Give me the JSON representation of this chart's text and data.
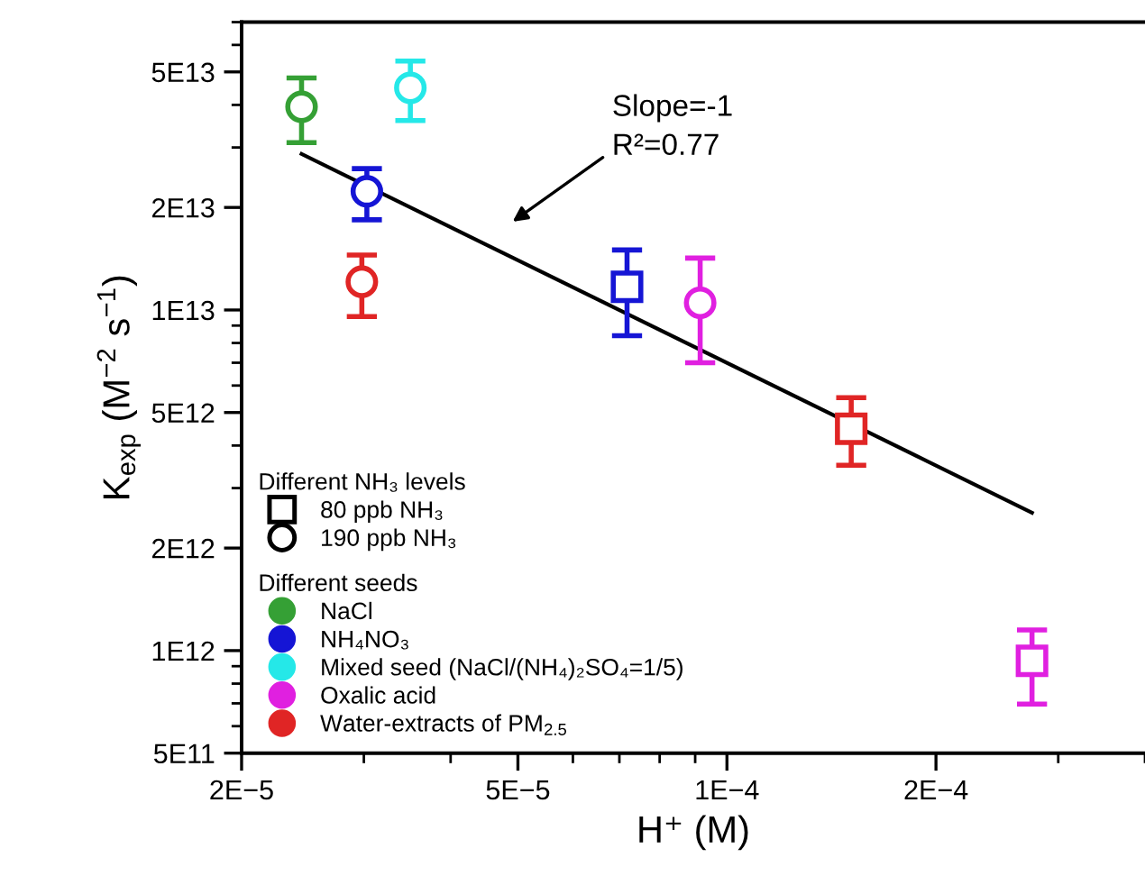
{
  "chart_data": {
    "type": "scatter",
    "xlabel": "H⁺ (M)",
    "ylabel": "K$_{exp}$ (M$^{−2}$ s$^{−1}$)",
    "log": "xy",
    "xlim": [
      2e-05,
      0.0004
    ],
    "ylim": [
      500000000000.0,
      70000000000000.0
    ],
    "xticks": [
      {
        "value": 2e-05,
        "label": "2E−5"
      },
      {
        "value": 5e-05,
        "label": "5E−5"
      },
      {
        "value": 0.0001,
        "label": "1E−4"
      },
      {
        "value": 0.0002,
        "label": "2E−4"
      }
    ],
    "yticks": [
      {
        "value": 500000000000.0,
        "label": "5E11"
      },
      {
        "value": 1000000000000.0,
        "label": "1E12"
      },
      {
        "value": 2000000000000.0,
        "label": "2E12"
      },
      {
        "value": 5000000000000.0,
        "label": "5E12"
      },
      {
        "value": 10000000000000.0,
        "label": "1E13"
      },
      {
        "value": 20000000000000.0,
        "label": "2E13"
      },
      {
        "value": 50000000000000.0,
        "label": "5E13"
      }
    ],
    "grid": false,
    "legend": "bottom left",
    "legend_title": [
      "Different NH₃ levels",
      "Different seeds"
    ],
    "series": [
      {
        "name": "80 ppb NH₃",
        "marker": "square",
        "color": "#000000"
      },
      {
        "name": "190 ppb NH₃",
        "marker": "circle",
        "color": "#000000"
      },
      {
        "name": "NaCl",
        "color": "#35a035",
        "marker": [
          "circle"
        ],
        "x": [
          2.44e-05
        ],
        "values": [
          39500000000000.0
        ],
        "errors": [
          [
            31000000000000.0,
            48000000000000.0
          ]
        ]
      },
      {
        "name": "NH₄NO₃",
        "color": "#1515d5",
        "marker": [
          "circle",
          "square"
        ],
        "x": [
          3.03e-05,
          7.18e-05
        ],
        "values": [
          22300000000000.0,
          11700000000000.0
        ],
        "errors": [
          [
            18400000000000.0,
            26000000000000.0
          ],
          [
            8400000000000.0,
            15000000000000.0
          ]
        ]
      },
      {
        "name": "Mixed seed (NaCl/(NH₄)₂SO₄=1/5)",
        "color": "#25e8e8",
        "marker": [
          "circle"
        ],
        "x": [
          3.5e-05
        ],
        "values": [
          44900000000000.0
        ],
        "errors": [
          [
            36000000000000.0,
            53800000000000.0
          ]
        ]
      },
      {
        "name": "Oxalic acid",
        "color": "#e020e0",
        "marker": [
          "circle",
          "square"
        ],
        "x": [
          9.15e-05,
          0.000275
        ],
        "values": [
          10500000000000.0,
          933000000000.0
        ],
        "errors": [
          [
            7000000000000.0,
            14200000000000.0
          ],
          [
            697000000000.0,
            1150000000000.0
          ]
        ]
      },
      {
        "name": "Water-extracts of PM$_{2.5}$",
        "color": "#e02525",
        "marker": [
          "circle",
          "square"
        ],
        "x": [
          2.98e-05,
          0.000151
        ],
        "values": [
          12100000000000.0,
          4480000000000.0
        ],
        "errors": [
          [
            9570000000000.0,
            14500000000000.0
          ],
          [
            3500000000000.0,
            5530000000000.0
          ]
        ]
      },
      {
        "type": "line",
        "color": "#000000",
        "marker": "none",
        "x": [
          2.44e-05,
          0.000275
        ],
        "values": [
          28700000000000.0,
          2540000000000.0
        ]
      }
    ],
    "annotations": [
      "Slope=-1\nR²=0.77"
    ]
  }
}
